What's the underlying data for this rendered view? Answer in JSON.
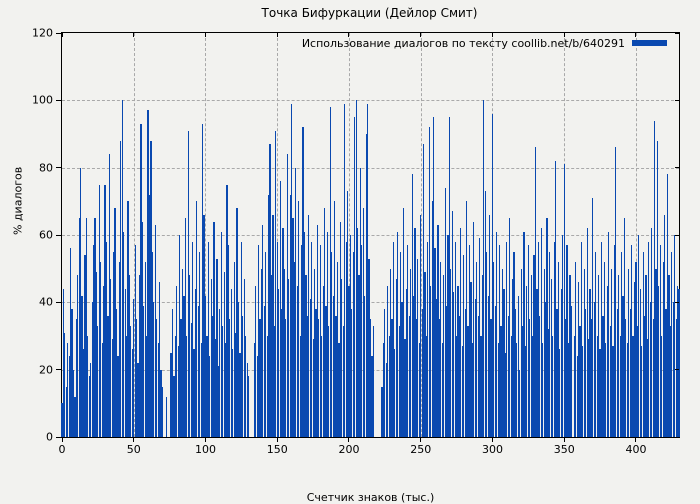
{
  "chart_data": {
    "type": "bar",
    "title": "Точка Бифуркации (Дейлор Смит)",
    "legend": "Использование диалогов по тексту coollib.net/b/640291",
    "legend_position": "top-right",
    "xlabel": "Счетчик знаков (тыс.)",
    "ylabel": "% диалогов",
    "xlim": [
      0,
      430
    ],
    "ylim": [
      0,
      120
    ],
    "x_ticks": [
      0,
      50,
      100,
      150,
      200,
      250,
      300,
      350,
      400
    ],
    "y_ticks": [
      0,
      20,
      40,
      60,
      80,
      100,
      120
    ],
    "grid": true,
    "bar_color": "#0a49b0",
    "grid_color": "#a9a9a9",
    "background_color": "#f2f2ef",
    "x_start": 0,
    "x_step": 1,
    "values": [
      10,
      44,
      31,
      15,
      28,
      24,
      56,
      38,
      20,
      12,
      35,
      48,
      65,
      80,
      42,
      26,
      54,
      65,
      30,
      18,
      22,
      40,
      57,
      65,
      49,
      33,
      75,
      52,
      28,
      45,
      75,
      58,
      36,
      84,
      47,
      29,
      55,
      68,
      38,
      24,
      52,
      88,
      100,
      61,
      44,
      30,
      70,
      48,
      33,
      26,
      41,
      57,
      35,
      22,
      48,
      93,
      64,
      39,
      52,
      30,
      97,
      72,
      88,
      55,
      40,
      63,
      35,
      28,
      46,
      20,
      15,
      0,
      0,
      12,
      0,
      0,
      25,
      38,
      18,
      30,
      45,
      27,
      60,
      35,
      50,
      42,
      65,
      30,
      91,
      48,
      34,
      58,
      26,
      44,
      70,
      39,
      55,
      28,
      93,
      66,
      42,
      30,
      58,
      24,
      47,
      36,
      64,
      29,
      53,
      21,
      38,
      61,
      33,
      49,
      28,
      75,
      57,
      35,
      44,
      26,
      52,
      31,
      68,
      40,
      25,
      58,
      36,
      47,
      30,
      22,
      18,
      0,
      0,
      0,
      28,
      45,
      24,
      57,
      35,
      50,
      63,
      39,
      55,
      30,
      72,
      87,
      48,
      66,
      33,
      91,
      58,
      44,
      76,
      38,
      62,
      50,
      35,
      84,
      47,
      72,
      99,
      65,
      52,
      80,
      45,
      70,
      30,
      57,
      92,
      61,
      48,
      36,
      66,
      41,
      58,
      29,
      50,
      38,
      63,
      35,
      57,
      30,
      45,
      68,
      39,
      61,
      33,
      98,
      55,
      42,
      70,
      36,
      52,
      28,
      64,
      47,
      33,
      99,
      58,
      73,
      45,
      60,
      38,
      55,
      95,
      100,
      62,
      48,
      80,
      57,
      68,
      42,
      90,
      99,
      53,
      35,
      24,
      33,
      0,
      0,
      0,
      0,
      0,
      15,
      28,
      38,
      22,
      45,
      30,
      50,
      35,
      58,
      26,
      47,
      61,
      33,
      55,
      40,
      68,
      29,
      44,
      57,
      36,
      50,
      78,
      42,
      62,
      35,
      53,
      28,
      66,
      38,
      87,
      49,
      30,
      58,
      92,
      45,
      70,
      95,
      56,
      41,
      63,
      35,
      52,
      28,
      48,
      74,
      39,
      60,
      95,
      50,
      67,
      43,
      58,
      30,
      45,
      36,
      62,
      27,
      54,
      38,
      70,
      33,
      57,
      46,
      28,
      64,
      41,
      52,
      36,
      59,
      30,
      48,
      100,
      73,
      55,
      42,
      66,
      35,
      96,
      52,
      39,
      61,
      28,
      57,
      33,
      50,
      44,
      25,
      58,
      36,
      65,
      30,
      47,
      55,
      38,
      28,
      42,
      20,
      50,
      33,
      61,
      27,
      45,
      57,
      35,
      48,
      30,
      54,
      86,
      44,
      58,
      36,
      62,
      28,
      50,
      40,
      65,
      32,
      55,
      47,
      30,
      58,
      82,
      38,
      52,
      26,
      44,
      60,
      81,
      35,
      57,
      28,
      48,
      39,
      0,
      30,
      52,
      24,
      46,
      33,
      58,
      27,
      50,
      38,
      62,
      29,
      44,
      35,
      71,
      40,
      55,
      30,
      48,
      26,
      58,
      36,
      52,
      28,
      45,
      61,
      33,
      50,
      27,
      57,
      86,
      38,
      48,
      30,
      55,
      42,
      65,
      35,
      28,
      50,
      38,
      57,
      30,
      46,
      52,
      33,
      60,
      44,
      27,
      55,
      36,
      48,
      29,
      58,
      40,
      62,
      35,
      94,
      50,
      88,
      45,
      57,
      30,
      52,
      66,
      38,
      78,
      48,
      33,
      55,
      40,
      60,
      35,
      45,
      44
    ]
  }
}
